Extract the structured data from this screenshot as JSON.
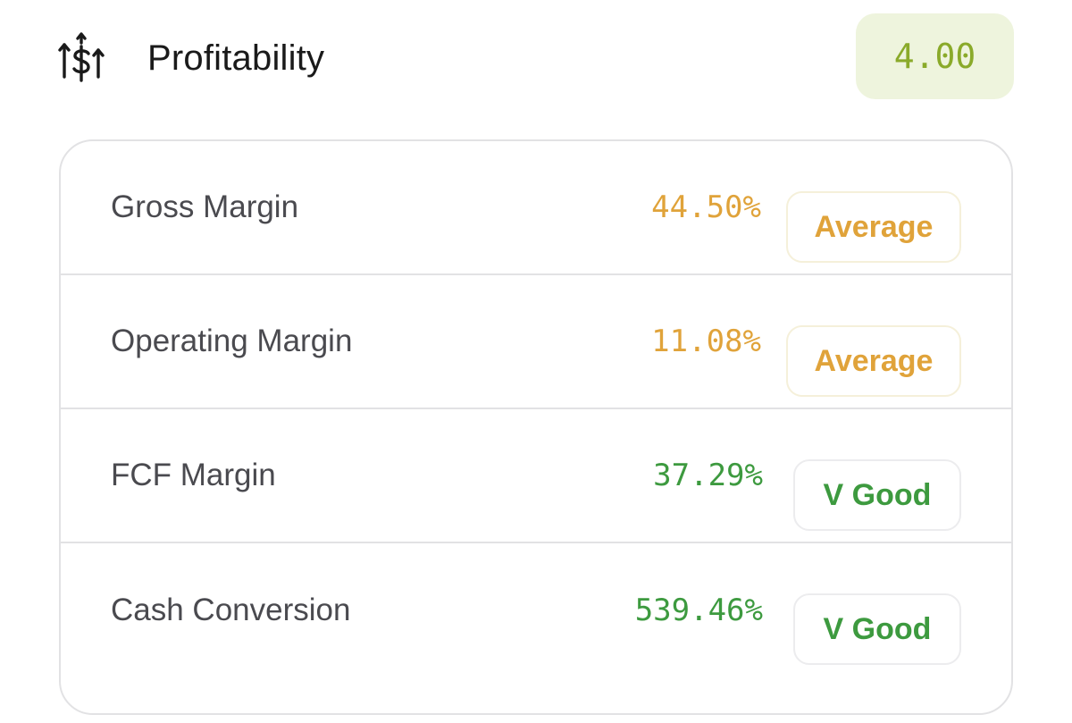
{
  "section": {
    "icon": "trending-dollar-icon",
    "title": "Profitability",
    "score": "4.00",
    "score_color": "#8aaa2a",
    "score_bg": "#eef4dd"
  },
  "metrics": [
    {
      "label": "Gross Margin",
      "value": "44.50%",
      "rating": "Average",
      "color": "#e0a33a"
    },
    {
      "label": "Operating Margin",
      "value": "11.08%",
      "rating": "Average",
      "color": "#e0a33a"
    },
    {
      "label": "FCF Margin",
      "value": "37.29%",
      "rating": "V Good",
      "color": "#3d9a3f"
    },
    {
      "label": "Cash Conversion",
      "value": "539.46%",
      "rating": "V Good",
      "color": "#3d9a3f"
    }
  ]
}
